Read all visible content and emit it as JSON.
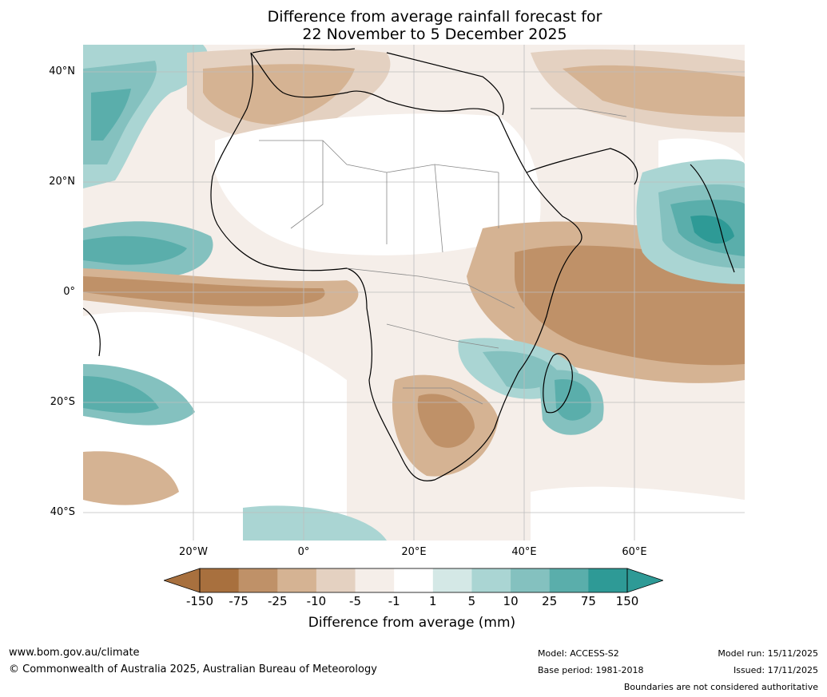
{
  "title_line1": "Difference from average rainfall forecast for",
  "title_line2": "22 November to 5 December 2025",
  "map": {
    "lat_labels": [
      "40°N",
      "20°N",
      "0°",
      "20°S",
      "40°S"
    ],
    "lon_labels": [
      "20°W",
      "0°",
      "20°E",
      "40°E",
      "60°E"
    ],
    "lat_range": [
      -45,
      45
    ],
    "lon_range": [
      -40,
      80
    ],
    "gridlines": true
  },
  "legend": {
    "title": "Difference from average (mm)",
    "ticks": [
      "-150",
      "-75",
      "-25",
      "-10",
      "-5",
      "-1",
      "1",
      "5",
      "10",
      "25",
      "75",
      "150"
    ],
    "colors": [
      "#a8703e",
      "#bf9168",
      "#d5b393",
      "#e4d1c1",
      "#f5eee9",
      "#ffffff",
      "#d4e8e6",
      "#aad5d3",
      "#84c1bf",
      "#5aaeab",
      "#2e9a96"
    ],
    "under_color": "#a8703e",
    "over_color": "#2e9a96"
  },
  "footer": {
    "url": "www.bom.gov.au/climate",
    "copyright": "© Commonwealth of Australia 2025, Australian Bureau of Meteorology",
    "model": "Model: ACCESS-S2",
    "base_period": "Base period: 1981-2018",
    "model_run": "Model run: 15/11/2025",
    "issued": "Issued: 17/11/2025",
    "disclaimer": "Boundaries are not considered authoritative"
  }
}
